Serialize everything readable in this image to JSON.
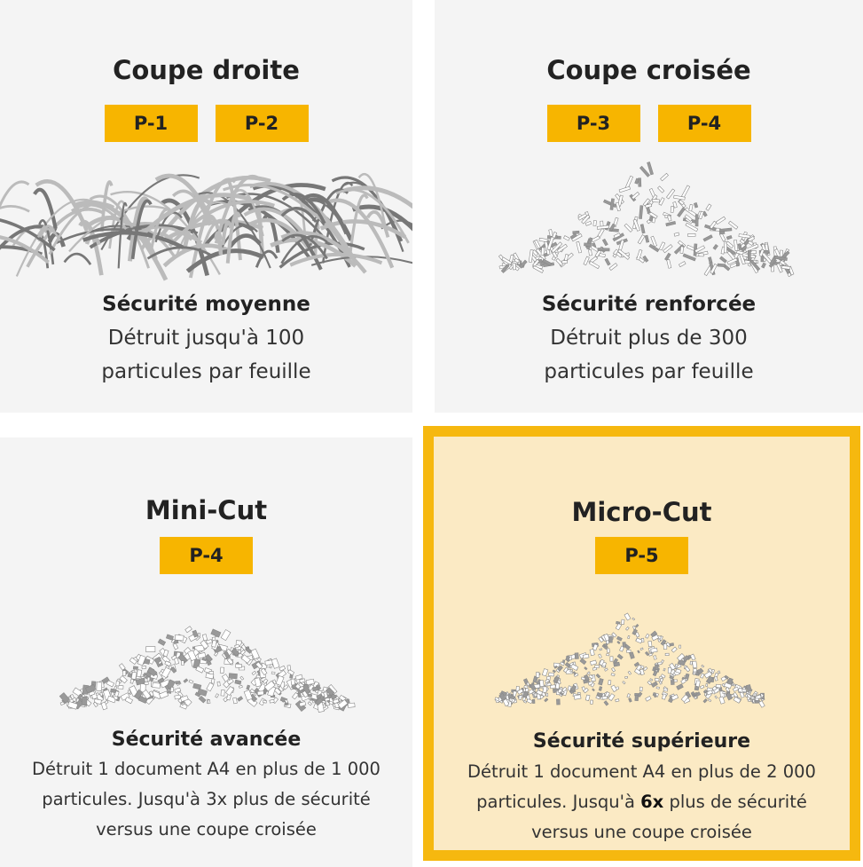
{
  "panels": [
    {
      "title": "Coupe droite",
      "badges": [
        "P-1",
        "P-2"
      ],
      "subtitle": "Sécurité moyenne",
      "lines": [
        [
          {
            "text": "Détruit jusqu'à 100"
          }
        ],
        [
          {
            "text": "particules par feuille"
          }
        ]
      ]
    },
    {
      "title": "Coupe croisée",
      "badges": [
        "P-3",
        "P-4"
      ],
      "subtitle": "Sécurité renforcée",
      "lines": [
        [
          {
            "text": "Détruit plus de 300"
          }
        ],
        [
          {
            "text": "particules par feuille"
          }
        ]
      ]
    },
    {
      "title": "Mini-Cut",
      "badges": [
        "P-4"
      ],
      "subtitle": "Sécurité avancée",
      "lines": [
        [
          {
            "text": "Détruit 1 document A4 en plus de 1 000"
          }
        ],
        [
          {
            "text": "particules. Jusqu'à 3x plus de sécurité"
          }
        ],
        [
          {
            "text": "versus une coupe croisée"
          }
        ]
      ]
    },
    {
      "title": "Micro-Cut",
      "badges": [
        "P-5"
      ],
      "subtitle": "Sécurité supérieure",
      "lines": [
        [
          {
            "text": "Détruit 1 document A4 en plus de 2 000"
          }
        ],
        [
          {
            "text": "particules. Jusqu'à"
          },
          {
            "text": "6x",
            "bold": true
          },
          {
            "text": "plus de sécurité"
          }
        ],
        [
          {
            "text": "versus une coupe croisée"
          }
        ]
      ]
    }
  ]
}
